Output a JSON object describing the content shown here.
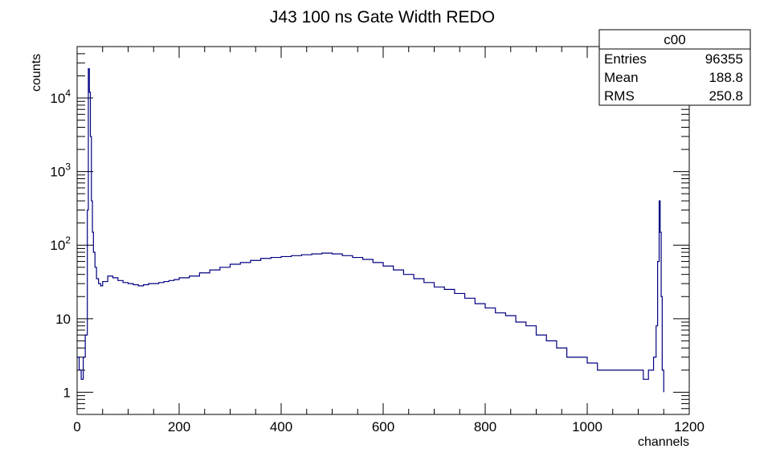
{
  "chart_data": {
    "type": "histogram",
    "title": "J43 100 ns Gate Width REDO",
    "xlabel": "channels",
    "ylabel": "counts",
    "xlim": [
      0,
      1200
    ],
    "ylim": [
      0.5,
      50000
    ],
    "yscale": "log",
    "grid": false,
    "line_color": "#000080",
    "x_ticks": [
      0,
      200,
      400,
      600,
      800,
      1000,
      1200
    ],
    "x_tick_labels": [
      "0",
      "200",
      "400",
      "600",
      "800",
      "1000",
      "1200"
    ],
    "y_ticks": [
      1,
      10,
      100,
      1000,
      10000
    ],
    "y_tick_labels": [
      {
        "base": "1",
        "exp": ""
      },
      {
        "base": "10",
        "exp": ""
      },
      {
        "base": "10",
        "exp": "2"
      },
      {
        "base": "10",
        "exp": "3"
      },
      {
        "base": "10",
        "exp": "4"
      }
    ],
    "series": [
      {
        "x": [
          0,
          4,
          8,
          12,
          16,
          20,
          22,
          24,
          26,
          28,
          30,
          32,
          35,
          38,
          42,
          46,
          50,
          60,
          70,
          80,
          90,
          100,
          110,
          120,
          130,
          140,
          150,
          160,
          170,
          180,
          190,
          200,
          220,
          240,
          260,
          280,
          300,
          320,
          340,
          360,
          380,
          400,
          420,
          440,
          460,
          480,
          500,
          520,
          540,
          560,
          580,
          600,
          620,
          640,
          660,
          680,
          700,
          720,
          740,
          760,
          780,
          800,
          820,
          840,
          860,
          880,
          900,
          920,
          940,
          960,
          980,
          1000,
          1020,
          1040,
          1060,
          1080,
          1100,
          1110,
          1120,
          1130,
          1135,
          1138,
          1141,
          1143,
          1145,
          1147,
          1150
        ],
        "y": [
          3,
          2,
          1.5,
          3,
          6,
          300,
          25000,
          12000,
          3000,
          400,
          150,
          80,
          50,
          35,
          30,
          28,
          32,
          38,
          36,
          33,
          31,
          30,
          29,
          28,
          29,
          30,
          30,
          31,
          32,
          33,
          34,
          36,
          38,
          42,
          46,
          50,
          55,
          58,
          62,
          66,
          68,
          70,
          72,
          74,
          76,
          78,
          76,
          72,
          68,
          64,
          58,
          52,
          46,
          40,
          35,
          31,
          27,
          25,
          22,
          19,
          16,
          14,
          12,
          11,
          9,
          8,
          6,
          5,
          4,
          3,
          3,
          2.5,
          2,
          2,
          2,
          2,
          2,
          1.5,
          2,
          3,
          8,
          60,
          400,
          150,
          20,
          2,
          1
        ]
      }
    ],
    "stats_box": {
      "title": "c00",
      "rows": [
        {
          "label": "Entries",
          "value": "96355"
        },
        {
          "label": "Mean",
          "value": "188.8"
        },
        {
          "label": "RMS",
          "value": "250.8"
        }
      ]
    }
  }
}
